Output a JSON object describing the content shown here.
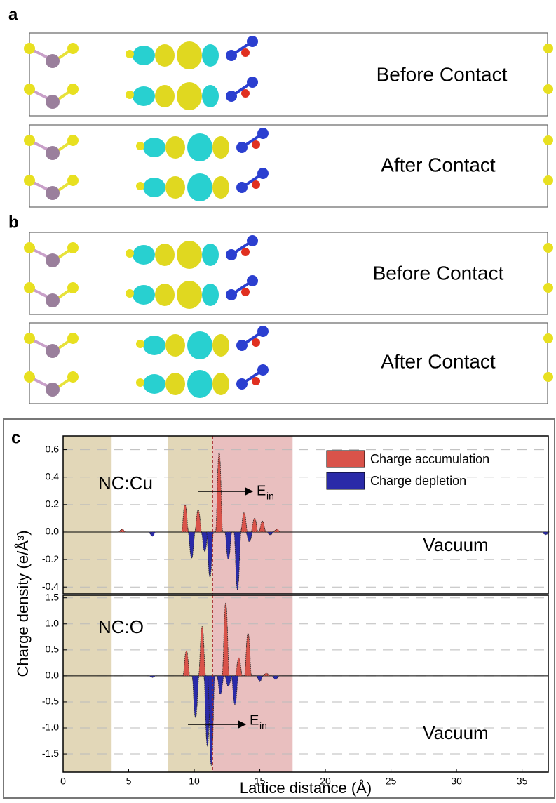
{
  "panels": {
    "a": {
      "label": "a",
      "before": "Before Contact",
      "after": "After Contact"
    },
    "b": {
      "label": "b",
      "before": "Before Contact",
      "after": "After Contact"
    },
    "c": {
      "label": "c"
    }
  },
  "chart_data": [
    {
      "type": "lobes",
      "ylabel": "Charge density (e/Å³)",
      "annotation": "NC:Cu",
      "region_label": "Vacuum",
      "arrow_label": "E",
      "arrow_sub": "in",
      "xlim": [
        0,
        37
      ],
      "ylim": [
        -0.45,
        0.7
      ],
      "yticks": [
        -0.4,
        -0.2,
        0.0,
        0.2,
        0.4,
        0.6
      ],
      "grid": true,
      "legend": "upper right",
      "shaded_regions": [
        {
          "xlim": [
            0,
            3.7
          ],
          "color": "#d8c9a0"
        },
        {
          "xlim": [
            8,
            11.4
          ],
          "color": "#d8c9a0"
        },
        {
          "xlim": [
            11.4,
            17.5
          ],
          "color": "#e2aaaa"
        }
      ],
      "interface_x": 11.4,
      "series": [
        {
          "name": "Charge accumulation",
          "color": "#d9534a",
          "x": [
            4.5,
            9.3,
            10.3,
            11.9,
            13.8,
            14.6,
            15.2,
            16.3
          ],
          "values": [
            0.02,
            0.2,
            0.16,
            0.58,
            0.14,
            0.1,
            0.08,
            0.02
          ]
        },
        {
          "name": "Charge depletion",
          "color": "#2a2aa8",
          "x": [
            6.8,
            9.8,
            10.8,
            11.2,
            12.6,
            13.3,
            14.2,
            15.8,
            36.8
          ],
          "values": [
            -0.03,
            -0.19,
            -0.14,
            -0.33,
            -0.2,
            -0.42,
            -0.07,
            -0.02,
            -0.02
          ]
        }
      ]
    },
    {
      "type": "lobes",
      "xlabel": "Lattice distance (Å)",
      "annotation": "NC:O",
      "region_label": "Vacuum",
      "arrow_label": "E",
      "arrow_sub": "in",
      "xlim": [
        0,
        37
      ],
      "xticks": [
        0,
        5,
        10,
        15,
        20,
        25,
        30,
        35
      ],
      "ylim": [
        -1.85,
        1.55
      ],
      "yticks": [
        -1.5,
        -1.0,
        -0.5,
        0.0,
        0.5,
        1.0,
        1.5
      ],
      "grid": true,
      "shaded_regions": [
        {
          "xlim": [
            0,
            3.7
          ],
          "color": "#d8c9a0"
        },
        {
          "xlim": [
            8,
            11.4
          ],
          "color": "#d8c9a0"
        },
        {
          "xlim": [
            11.4,
            17.5
          ],
          "color": "#e2aaaa"
        }
      ],
      "interface_x": 11.4,
      "series": [
        {
          "name": "Charge accumulation",
          "color": "#d9534a",
          "x": [
            9.4,
            10.6,
            12.4,
            13.4,
            14.1,
            15.5
          ],
          "values": [
            0.48,
            0.95,
            1.4,
            0.35,
            0.82,
            0.05
          ]
        },
        {
          "name": "Charge depletion",
          "color": "#2a2aa8",
          "x": [
            6.8,
            10.1,
            11.0,
            11.3,
            12.0,
            12.6,
            13.1,
            15.0,
            16.2
          ],
          "values": [
            -0.03,
            -0.8,
            -1.35,
            -1.72,
            -0.35,
            -0.2,
            -0.55,
            -0.1,
            -0.07
          ]
        }
      ]
    }
  ]
}
